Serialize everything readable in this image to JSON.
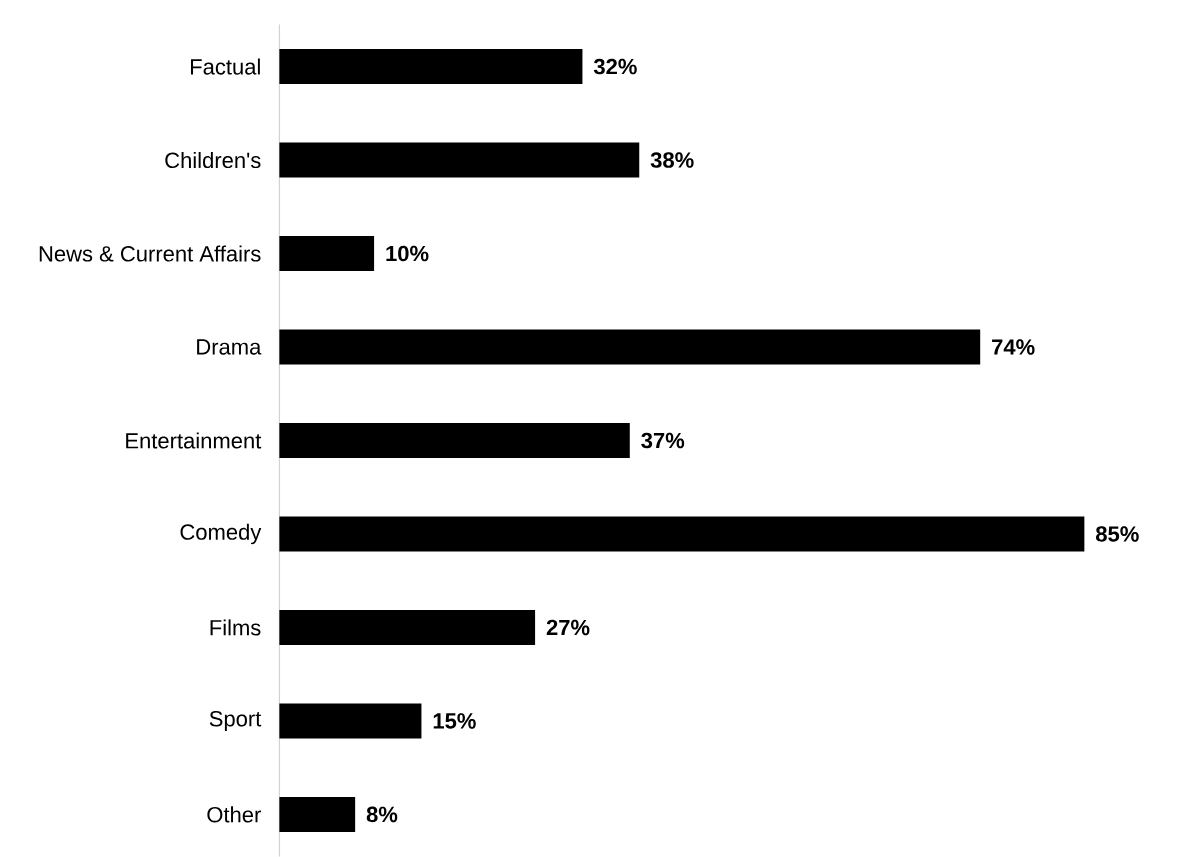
{
  "chart_data": {
    "type": "bar",
    "orientation": "horizontal",
    "categories": [
      "Factual",
      "Children's",
      "News & Current Affairs",
      "Drama",
      "Entertainment",
      "Comedy",
      "Films",
      "Sport",
      "Other"
    ],
    "values": [
      32,
      38,
      10,
      74,
      37,
      85,
      27,
      15,
      8
    ],
    "value_labels": [
      "32%",
      "38%",
      "10%",
      "74%",
      "37%",
      "85%",
      "27%",
      "15%",
      "8%"
    ],
    "color": "#000000"
  }
}
